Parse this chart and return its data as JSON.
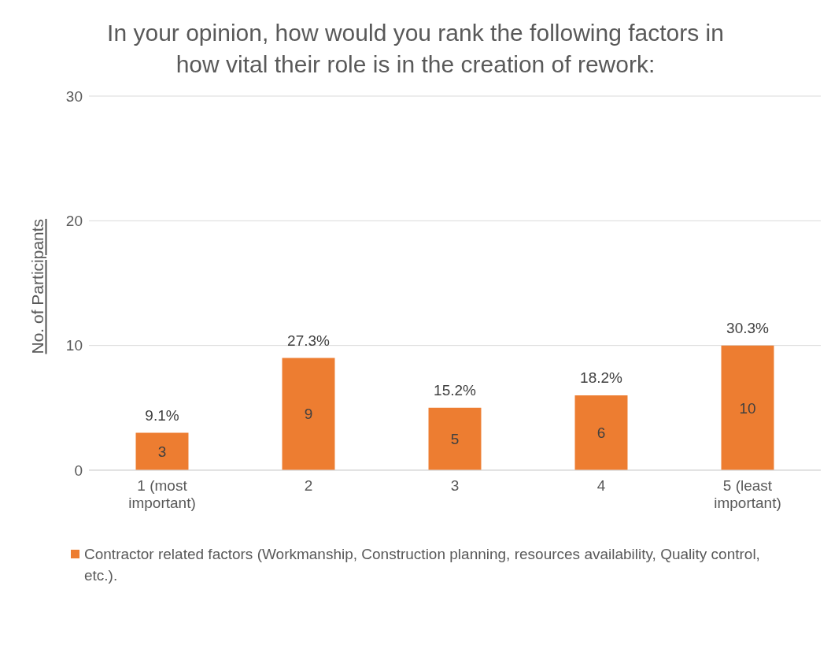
{
  "chart_data": {
    "type": "bar",
    "title": "In your opinion, how would you rank the following factors in how vital their role is in the creation of rework:",
    "ylabel": "No. of Participants",
    "categories": [
      "1 (most important)",
      "2",
      "3",
      "4",
      "5 (least important)"
    ],
    "series": [
      {
        "name": "Contractor related factors (Workmanship, Construction planning, resources availability, Quality control, etc.).",
        "color": "#ed7d31",
        "values": [
          3,
          9,
          5,
          6,
          10
        ]
      }
    ],
    "data_labels": true,
    "annotations": [
      {
        "text": "9.1%",
        "x": "1 (most important)",
        "y": 3
      },
      {
        "text": "27.3%",
        "x": "2",
        "y": 9
      },
      {
        "text": "15.2%",
        "x": "3",
        "y": 5
      },
      {
        "text": "18.2%",
        "x": "4",
        "y": 6
      },
      {
        "text": "30.3%",
        "x": "5 (least important)",
        "y": 10
      }
    ],
    "ylim": [
      0,
      30
    ],
    "yticks": [
      0,
      10,
      20,
      30
    ],
    "grid": "y",
    "legend": "bottom"
  }
}
